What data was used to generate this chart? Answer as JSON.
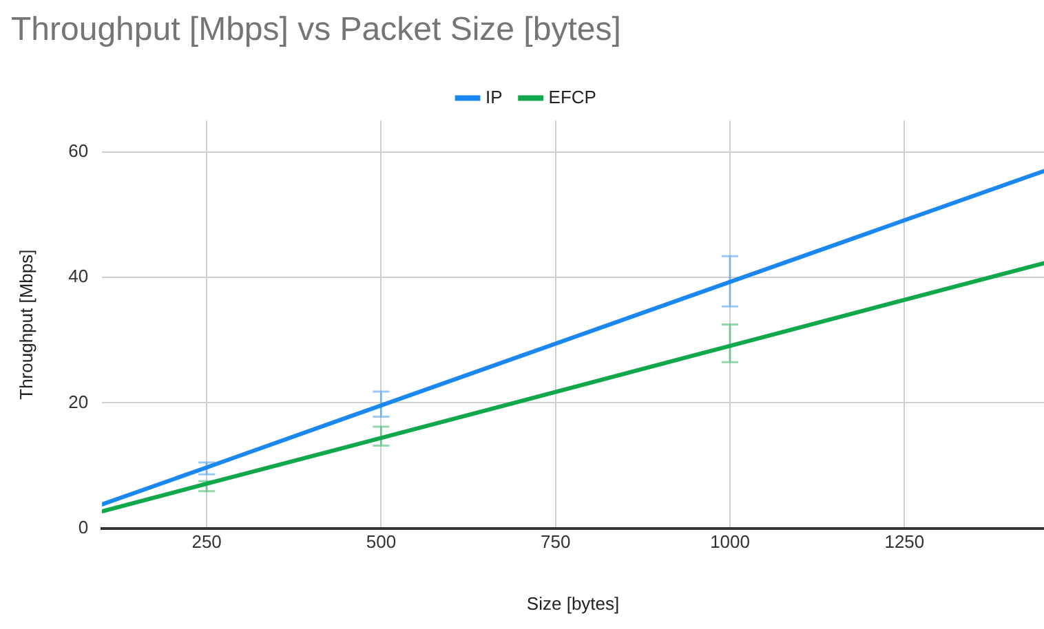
{
  "chart_data": {
    "type": "line",
    "title": "Throughput [Mbps] vs Packet Size [bytes]",
    "xlabel": "Size [bytes]",
    "ylabel": "Throughput [Mbps]",
    "x": [
      100,
      250,
      500,
      1000,
      1450
    ],
    "series": [
      {
        "name": "IP",
        "color": "#1a88f0",
        "values": [
          3.8,
          9.7,
          19.6,
          39.3,
          57
        ],
        "errors": [
          null,
          [
            8.6,
            10.5
          ],
          [
            17.8,
            21.8
          ],
          [
            35.4,
            43.4
          ],
          null
        ]
      },
      {
        "name": "EFCP",
        "color": "#10a84a",
        "values": [
          2.7,
          7.1,
          14.4,
          29.1,
          42.3
        ],
        "errors": [
          null,
          [
            5.9,
            7.5
          ],
          [
            13.2,
            16.2
          ],
          [
            26.5,
            32.5
          ],
          null
        ]
      }
    ],
    "xlim": [
      100,
      1450
    ],
    "xticks": [
      250,
      500,
      750,
      1000,
      1250
    ],
    "ylim": [
      0,
      65
    ],
    "yticks": [
      0,
      20,
      40,
      60
    ],
    "grid": true,
    "legend": "top",
    "marker": "none",
    "line_style": "solid"
  }
}
